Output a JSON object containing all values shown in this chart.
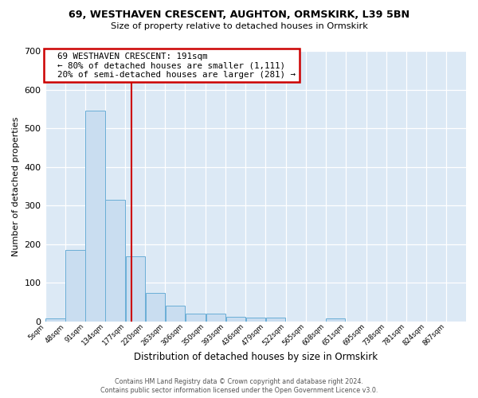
{
  "title1": "69, WESTHAVEN CRESCENT, AUGHTON, ORMSKIRK, L39 5BN",
  "title2": "Size of property relative to detached houses in Ormskirk",
  "xlabel": "Distribution of detached houses by size in Ormskirk",
  "ylabel": "Number of detached properties",
  "bin_edges": [
    5,
    48,
    91,
    134,
    177,
    220,
    263,
    306,
    350,
    393,
    436,
    479,
    522,
    565,
    608,
    651,
    695,
    738,
    781,
    824,
    867
  ],
  "bar_heights": [
    8,
    185,
    545,
    315,
    168,
    75,
    42,
    20,
    20,
    13,
    10,
    10,
    0,
    0,
    8,
    0,
    0,
    0,
    0,
    0
  ],
  "bar_color": "#c9ddf0",
  "bar_edgecolor": "#6aaed6",
  "property_size": 191,
  "redline_color": "#cc0000",
  "ylim_max": 700,
  "yticks": [
    0,
    100,
    200,
    300,
    400,
    500,
    600,
    700
  ],
  "annotation_title": "69 WESTHAVEN CRESCENT: 191sqm",
  "annotation_line1": "← 80% of detached houses are smaller (1,111)",
  "annotation_line2": "20% of semi-detached houses are larger (281) →",
  "bg_color": "#dce9f5",
  "footer1": "Contains HM Land Registry data © Crown copyright and database right 2024.",
  "footer2": "Contains public sector information licensed under the Open Government Licence v3.0.",
  "figwidth": 6.0,
  "figheight": 5.0,
  "dpi": 100
}
